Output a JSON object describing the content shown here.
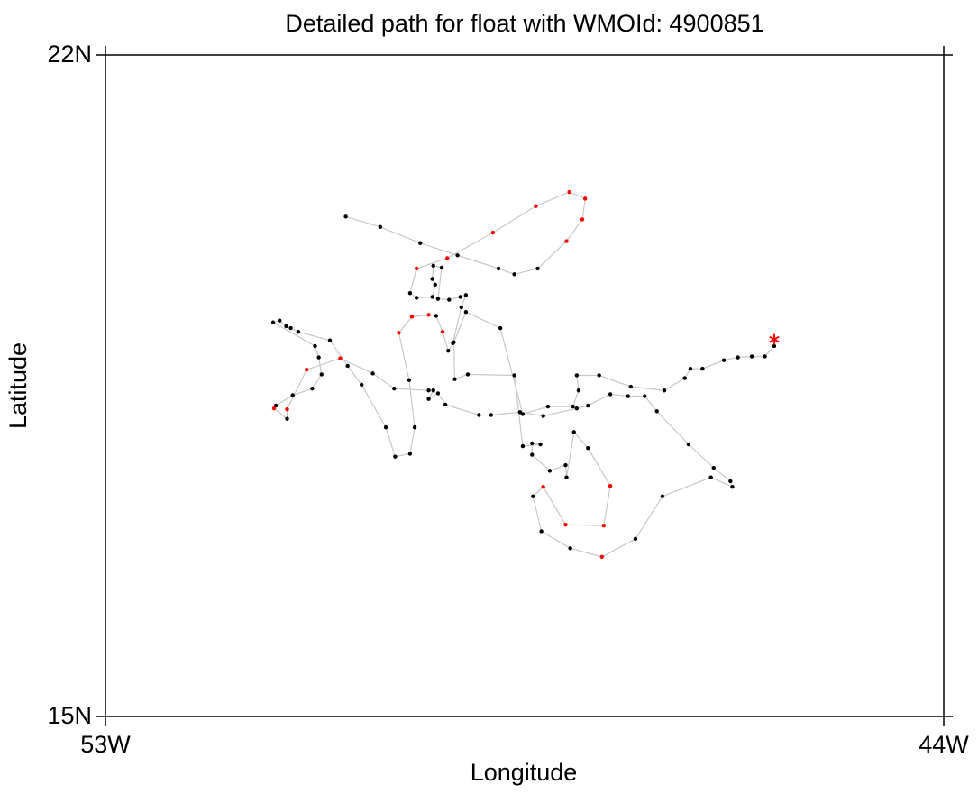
{
  "chart_data": {
    "type": "track",
    "title": "Detailed path for float with WMOId: 4900851",
    "x_label": "Longitude",
    "y_label": "Latitude",
    "xlim": [
      -53,
      -44
    ],
    "ylim": [
      15,
      22
    ],
    "xticks": [
      {
        "value": -53,
        "label": "53W"
      },
      {
        "value": -44,
        "label": "44W"
      }
    ],
    "yticks": [
      {
        "value": 15,
        "label": "15N"
      },
      {
        "value": 22,
        "label": "22N"
      }
    ],
    "line_color": "#c8c8c8",
    "last_marker": "asterisk",
    "x": [
      -50.42,
      -50.05,
      -49.62,
      -49.22,
      -48.78,
      -48.61,
      -48.36,
      -48.05,
      -47.88,
      -47.85,
      -48.02,
      -48.38,
      -48.84,
      -49.33,
      -49.66,
      -49.73,
      -49.66,
      -49.49,
      -49.46,
      -49.49,
      -49.48,
      -49.39,
      -49.43,
      -49.31,
      -49.19,
      -49.13,
      -49.18,
      -49.27,
      -49.32,
      -49.38,
      -49.45,
      -49.53,
      -49.71,
      -49.85,
      -49.74,
      -49.68,
      -49.73,
      -49.89,
      -49.99,
      -50.25,
      -50.4,
      -50.59,
      -50.93,
      -51.01,
      -51.06,
      -51.13,
      -51.2,
      -50.75,
      -50.71,
      -50.68,
      -50.78,
      -50.99,
      -51.17,
      -51.19,
      -51.05,
      -51.05,
      -50.84,
      -50.48,
      -50.13,
      -49.9,
      -49.53,
      -49.48,
      -49.53,
      -49.43,
      -49.35,
      -48.99,
      -48.86,
      -48.55,
      -48.3,
      -47.94,
      -47.82,
      -47.58,
      -47.39,
      -47.21,
      -47.08,
      -46.74,
      -46.47,
      -46.29,
      -46.27,
      -46.5,
      -47.02,
      -47.31,
      -47.67,
      -48.01,
      -48.32,
      -48.41,
      -48.3,
      -48.06,
      -47.65,
      -47.58,
      -47.82,
      -47.97,
      -48.05,
      -48.06,
      -48.23,
      -48.42,
      -48.42,
      -48.33,
      -48.52,
      -48.61,
      -49.11,
      -49.25,
      -49.26,
      -49.13,
      -48.76,
      -48.52,
      -48.25,
      -47.98,
      -47.92,
      -47.94,
      -47.7,
      -47.36,
      -47.0,
      -46.78,
      -46.72,
      -46.59,
      -46.36,
      -46.21,
      -46.06,
      -45.92,
      -45.82,
      -45.82
    ],
    "values": [
      20.29,
      20.18,
      20.01,
      19.88,
      19.74,
      19.68,
      19.74,
      20.03,
      20.26,
      20.48,
      20.55,
      20.4,
      20.12,
      19.85,
      19.74,
      19.48,
      19.43,
      19.44,
      19.57,
      19.63,
      19.77,
      19.75,
      19.42,
      19.41,
      19.44,
      19.46,
      19.33,
      18.95,
      18.87,
      19.07,
      19.24,
      19.25,
      19.23,
      19.06,
      18.56,
      18.06,
      17.78,
      17.75,
      18.06,
      18.51,
      18.71,
      18.98,
      19.07,
      19.11,
      19.13,
      19.19,
      19.17,
      18.92,
      18.8,
      18.62,
      18.47,
      18.4,
      18.29,
      18.26,
      18.15,
      18.25,
      18.67,
      18.79,
      18.63,
      18.47,
      18.45,
      18.45,
      18.36,
      18.42,
      18.3,
      18.19,
      18.19,
      18.22,
      18.18,
      18.26,
      18.29,
      18.41,
      18.39,
      18.39,
      18.23,
      17.88,
      17.63,
      17.49,
      17.43,
      17.53,
      17.33,
      16.88,
      16.69,
      16.78,
      16.96,
      17.33,
      17.43,
      17.03,
      17.02,
      17.44,
      17.84,
      18.01,
      17.53,
      17.66,
      17.6,
      17.77,
      17.89,
      17.88,
      17.86,
      18.61,
      18.62,
      18.57,
      18.96,
      19.28,
      19.11,
      18.2,
      18.28,
      18.28,
      18.45,
      18.61,
      18.61,
      18.49,
      18.45,
      18.58,
      18.68,
      18.68,
      18.77,
      18.8,
      18.81,
      18.81,
      18.92,
      18.99
    ],
    "point_colors": [
      "black",
      "black",
      "black",
      "black",
      "black",
      "black",
      "black",
      "red",
      "red",
      "red",
      "red",
      "red",
      "red",
      "red",
      "red",
      "black",
      "black",
      "black",
      "black",
      "black",
      "black",
      "black",
      "black",
      "black",
      "black",
      "black",
      "black",
      "black",
      "black",
      "red",
      "black",
      "red",
      "red",
      "red",
      "black",
      "black",
      "black",
      "black",
      "black",
      "black",
      "black",
      "black",
      "black",
      "black",
      "black",
      "black",
      "black",
      "black",
      "black",
      "black",
      "black",
      "black",
      "black",
      "red",
      "black",
      "red",
      "red",
      "red",
      "black",
      "black",
      "black",
      "black",
      "black",
      "black",
      "black",
      "black",
      "black",
      "black",
      "black",
      "black",
      "black",
      "black",
      "black",
      "black",
      "black",
      "black",
      "black",
      "black",
      "black",
      "black",
      "black",
      "black",
      "red",
      "black",
      "black",
      "black",
      "red",
      "red",
      "red",
      "red",
      "black",
      "black",
      "black",
      "black",
      "black",
      "black",
      "black",
      "black",
      "black",
      "black",
      "black",
      "black",
      "black",
      "black",
      "black",
      "black",
      "black",
      "black",
      "black",
      "black",
      "black",
      "black",
      "black",
      "black",
      "black",
      "black",
      "black",
      "black",
      "black",
      "black",
      "black",
      "red"
    ]
  }
}
